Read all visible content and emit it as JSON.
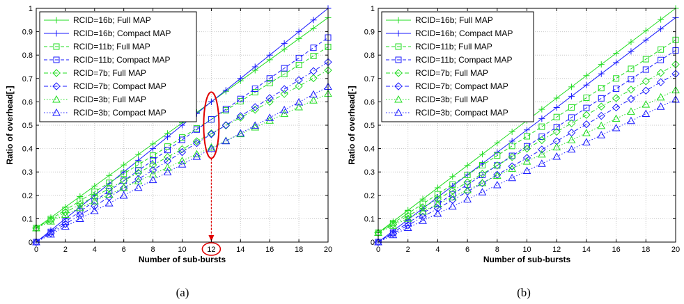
{
  "colors": {
    "green": "#22dd22",
    "blue": "#1a1aff",
    "grid": "#c8c8c8",
    "annotation": "#e00000"
  },
  "chart_data": [
    {
      "panel": "(a)",
      "type": "line",
      "xlabel": "Number of sub-bursts",
      "ylabel": "Ratio of overhead[-]",
      "xlim": [
        0,
        20
      ],
      "ylim": [
        0,
        1
      ],
      "xticks": [
        "0",
        "2",
        "4",
        "6",
        "8",
        "10",
        "12",
        "14",
        "16",
        "18",
        "20"
      ],
      "yticks": [
        "0",
        "0.1",
        "0.2",
        "0.3",
        "0.4",
        "0.5",
        "0.6",
        "0.7",
        "0.8",
        "0.9",
        "1"
      ],
      "grid": "on",
      "legend_position": "top-left",
      "x": [
        0,
        1,
        2,
        3,
        4,
        5,
        6,
        7,
        8,
        9,
        10,
        11,
        12,
        13,
        14,
        15,
        16,
        17,
        18,
        19,
        20
      ],
      "annotation": {
        "label": "12",
        "x": 12,
        "y_range": [
          0.4,
          0.6
        ]
      },
      "series": [
        {
          "name": "RCID=16b; Full MAP",
          "color": "green",
          "marker": "plus",
          "dash": "solid",
          "y0": 0.06,
          "y20": 0.96
        },
        {
          "name": "RCID=16b; Compact MAP",
          "color": "blue",
          "marker": "plus",
          "dash": "solid",
          "y0": 0.0,
          "y20": 1.0
        },
        {
          "name": "RCID=11b; Full MAP",
          "color": "green",
          "marker": "square",
          "dash": "dashed",
          "y0": 0.06,
          "y20": 0.835
        },
        {
          "name": "RCID=11b; Compact MAP",
          "color": "blue",
          "marker": "square",
          "dash": "dashed",
          "y0": 0.0,
          "y20": 0.875
        },
        {
          "name": "RCID=7b; Full MAP",
          "color": "green",
          "marker": "diamond",
          "dash": "dashdot",
          "y0": 0.06,
          "y20": 0.735
        },
        {
          "name": "RCID=7b; Compact MAP",
          "color": "blue",
          "marker": "diamond",
          "dash": "dashdot",
          "y0": 0.0,
          "y20": 0.77
        },
        {
          "name": "RCID=3b; Full MAP",
          "color": "green",
          "marker": "triangle",
          "dash": "dotted",
          "y0": 0.06,
          "y20": 0.635
        },
        {
          "name": "RCID=3b; Compact MAP",
          "color": "blue",
          "marker": "triangle",
          "dash": "dotted",
          "y0": 0.0,
          "y20": 0.665
        }
      ]
    },
    {
      "panel": "(b)",
      "type": "line",
      "xlabel": "Number of sub-bursts",
      "ylabel": "Ratio of overhead[-]",
      "xlim": [
        0,
        20
      ],
      "ylim": [
        0,
        1
      ],
      "xticks": [
        "0",
        "2",
        "4",
        "6",
        "8",
        "10",
        "12",
        "14",
        "16",
        "18",
        "20"
      ],
      "yticks": [
        "0",
        "0.1",
        "0.2",
        "0.3",
        "0.4",
        "0.5",
        "0.6",
        "0.7",
        "0.8",
        "0.9",
        "1"
      ],
      "grid": "on",
      "legend_position": "top-left",
      "x": [
        0,
        1,
        2,
        3,
        4,
        5,
        6,
        7,
        8,
        9,
        10,
        11,
        12,
        13,
        14,
        15,
        16,
        17,
        18,
        19,
        20
      ],
      "series": [
        {
          "name": "RCID=16b; Full MAP",
          "color": "green",
          "marker": "plus",
          "dash": "solid",
          "y0": 0.04,
          "y20": 1.0
        },
        {
          "name": "RCID=16b; Compact MAP",
          "color": "blue",
          "marker": "plus",
          "dash": "solid",
          "y0": 0.0,
          "y20": 0.96
        },
        {
          "name": "RCID=11b; Full MAP",
          "color": "green",
          "marker": "square",
          "dash": "dashed",
          "y0": 0.04,
          "y20": 0.865
        },
        {
          "name": "RCID=11b; Compact MAP",
          "color": "blue",
          "marker": "square",
          "dash": "dashed",
          "y0": 0.0,
          "y20": 0.82
        },
        {
          "name": "RCID=7b; Full MAP",
          "color": "green",
          "marker": "diamond",
          "dash": "dashdot",
          "y0": 0.04,
          "y20": 0.76
        },
        {
          "name": "RCID=7b; Compact MAP",
          "color": "blue",
          "marker": "diamond",
          "dash": "dashdot",
          "y0": 0.0,
          "y20": 0.72
        },
        {
          "name": "RCID=3b; Full MAP",
          "color": "green",
          "marker": "triangle",
          "dash": "dotted",
          "y0": 0.04,
          "y20": 0.65
        },
        {
          "name": "RCID=3b; Compact MAP",
          "color": "blue",
          "marker": "triangle",
          "dash": "dotted",
          "y0": 0.0,
          "y20": 0.61
        }
      ]
    }
  ]
}
